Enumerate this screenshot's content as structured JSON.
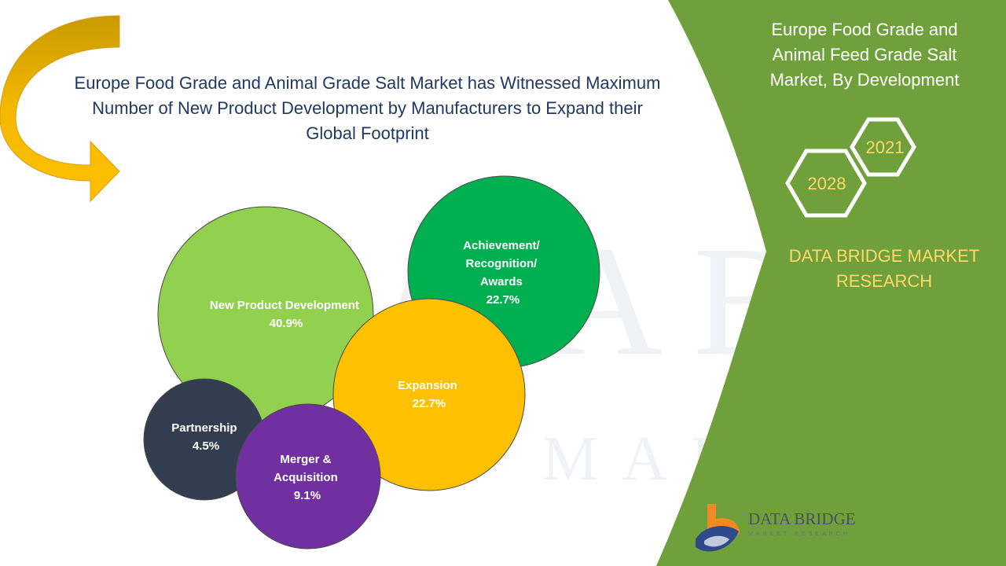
{
  "headline": {
    "line1": "Europe Food Grade and Animal Grade Salt Market has Witnessed Maximum",
    "line2": "Number of New Product Development by Manufacturers to Expand their",
    "line3": "Global Footprint"
  },
  "panel": {
    "title_line1": "Europe Food Grade and",
    "title_line2": "Animal Feed Grade Salt",
    "title_line3": "Market, By Development",
    "year_a": "2021",
    "year_b": "2028",
    "brand_line1": "DATA BRIDGE MARKET",
    "brand_line2": "RESEARCH"
  },
  "logo": {
    "name": "DATA BRIDGE",
    "subtitle": "MARKET RESEARCH"
  },
  "colors": {
    "panel_green": "#70a03c",
    "arrow_gold": "#f2b705",
    "headline_navy": "#1f3864",
    "brand_yellow": "#ffd966"
  },
  "chart_data": {
    "type": "bubble",
    "series": [
      {
        "name": "New Product Development",
        "label_lines": [
          "New Product Development"
        ],
        "value": "40.9%",
        "number": 40.9,
        "color": "#92d050"
      },
      {
        "name": "Achievement/ Recognition/ Awards",
        "label_lines": [
          "Achievement/",
          "Recognition/",
          "Awards"
        ],
        "value": "22.7%",
        "number": 22.7,
        "color": "#00b050"
      },
      {
        "name": "Expansion",
        "label_lines": [
          "Expansion"
        ],
        "value": "22.7%",
        "number": 22.7,
        "color": "#ffc000"
      },
      {
        "name": "Partnership",
        "label_lines": [
          "Partnership"
        ],
        "value": "4.5%",
        "number": 4.5,
        "color": "#323e4f"
      },
      {
        "name": "Merger & Acquisition",
        "label_lines": [
          "Merger &",
          "Acquisition"
        ],
        "value": "9.1%",
        "number": 9.1,
        "color": "#7030a0"
      }
    ]
  }
}
